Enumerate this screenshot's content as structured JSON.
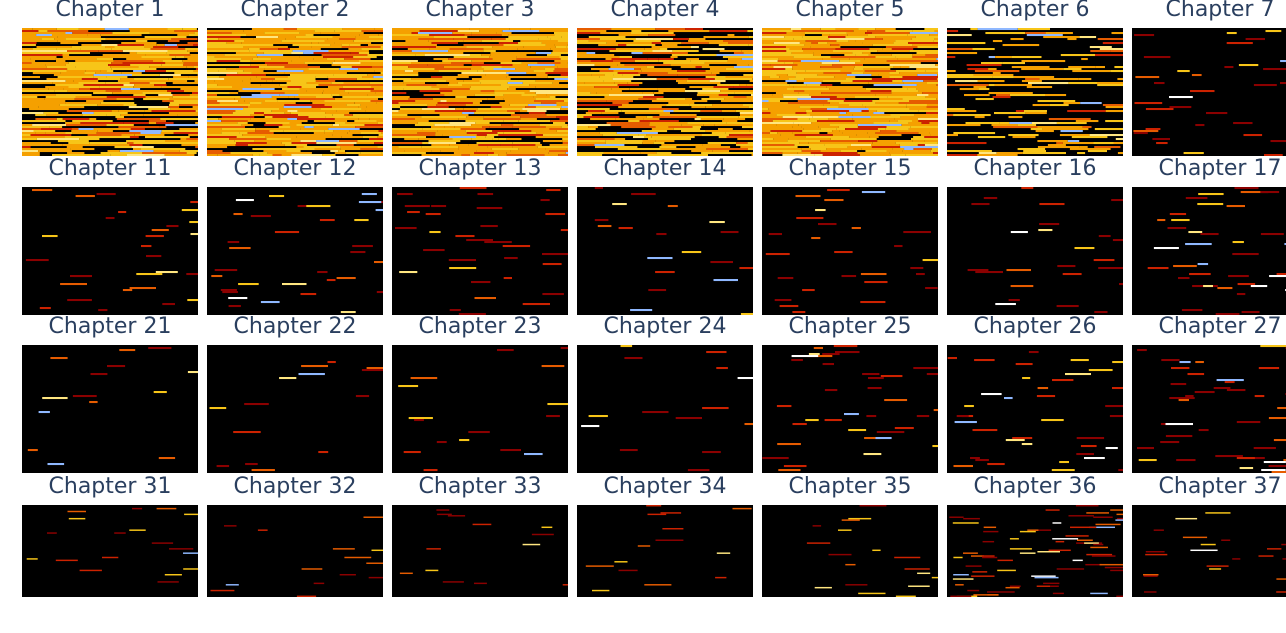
{
  "chart_data": {
    "type": "heatmap",
    "colorscale": [
      "#000000",
      "#8b0000",
      "#cc2200",
      "#e65c00",
      "#f5a000",
      "#f7c518",
      "#ffe680",
      "#ffffff",
      "#8fb8ff"
    ],
    "panels": [
      {
        "title": "Chapter 1",
        "density": 0.78
      },
      {
        "title": "Chapter 2",
        "density": 0.85
      },
      {
        "title": "Chapter 3",
        "density": 0.84
      },
      {
        "title": "Chapter 4",
        "density": 0.7
      },
      {
        "title": "Chapter 5",
        "density": 0.92
      },
      {
        "title": "Chapter 6",
        "density": 0.35
      },
      {
        "title": "Chapter 7",
        "density": 0.08
      },
      {
        "title": "Chapter 11",
        "density": 0.09
      },
      {
        "title": "Chapter 12",
        "density": 0.08
      },
      {
        "title": "Chapter 13",
        "density": 0.09
      },
      {
        "title": "Chapter 14",
        "density": 0.07
      },
      {
        "title": "Chapter 15",
        "density": 0.08
      },
      {
        "title": "Chapter 16",
        "density": 0.08
      },
      {
        "title": "Chapter 17",
        "density": 0.1
      },
      {
        "title": "Chapter 21",
        "density": 0.06
      },
      {
        "title": "Chapter 22",
        "density": 0.06
      },
      {
        "title": "Chapter 23",
        "density": 0.06
      },
      {
        "title": "Chapter 24",
        "density": 0.05
      },
      {
        "title": "Chapter 25",
        "density": 0.08
      },
      {
        "title": "Chapter 26",
        "density": 0.1
      },
      {
        "title": "Chapter 27",
        "density": 0.1
      },
      {
        "title": "Chapter 31",
        "density": 0.07
      },
      {
        "title": "Chapter 32",
        "density": 0.06
      },
      {
        "title": "Chapter 33",
        "density": 0.05
      },
      {
        "title": "Chapter 34",
        "density": 0.06
      },
      {
        "title": "Chapter 35",
        "density": 0.06
      },
      {
        "title": "Chapter 36",
        "density": 0.12
      },
      {
        "title": "Chapter 37",
        "density": 0.07
      }
    ]
  }
}
